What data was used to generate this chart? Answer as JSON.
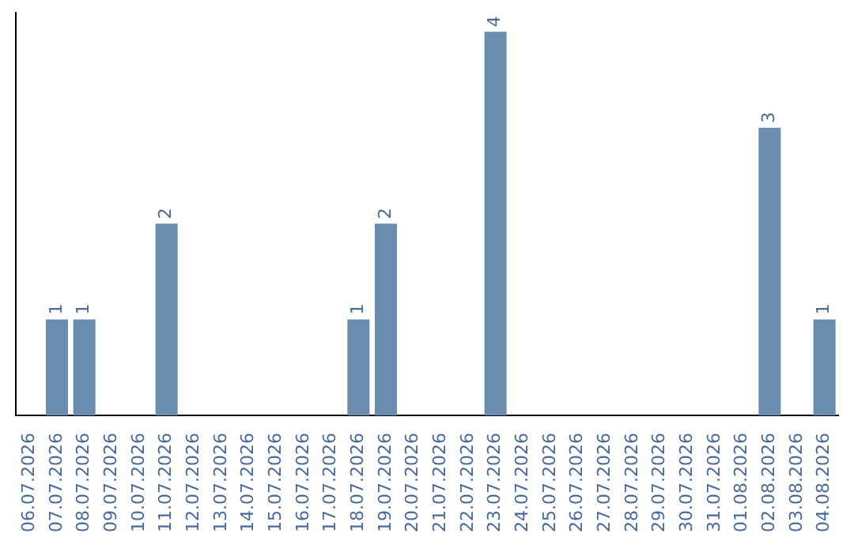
{
  "chart_data": {
    "type": "bar",
    "categories": [
      "06.07.2026",
      "07.07.2026",
      "08.07.2026",
      "09.07.2026",
      "10.07.2026",
      "11.07.2026",
      "12.07.2026",
      "13.07.2026",
      "14.07.2026",
      "15.07.2026",
      "16.07.2026",
      "17.07.2026",
      "18.07.2026",
      "19.07.2026",
      "20.07.2026",
      "21.07.2026",
      "22.07.2026",
      "23.07.2026",
      "24.07.2026",
      "25.07.2026",
      "26.07.2026",
      "27.07.2026",
      "28.07.2026",
      "29.07.2026",
      "30.07.2026",
      "31.07.2026",
      "01.08.2026",
      "02.08.2026",
      "03.08.2026",
      "04.08.2026"
    ],
    "values": [
      0,
      1,
      1,
      0,
      0,
      2,
      0,
      0,
      0,
      0,
      0,
      0,
      1,
      2,
      0,
      0,
      0,
      4,
      0,
      0,
      0,
      0,
      0,
      0,
      0,
      0,
      0,
      3,
      0,
      1
    ],
    "value_labels": [
      null,
      "1",
      "1",
      null,
      null,
      "2",
      null,
      null,
      null,
      null,
      null,
      null,
      "1",
      "2",
      null,
      null,
      null,
      "4",
      null,
      null,
      null,
      null,
      null,
      null,
      null,
      null,
      null,
      "3",
      null,
      "1"
    ],
    "color": "#6a8caf",
    "ylim": [
      0,
      4.2
    ],
    "tick_labels": "x",
    "grid": false,
    "legend": false
  }
}
